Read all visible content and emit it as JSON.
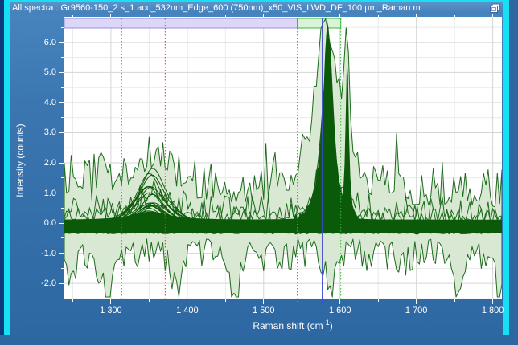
{
  "window": {
    "title": "All spectra : Gr9560-150_2 s_1 acc_532nm_Edge_600 (750nm)_x50_VIS_LWD_DF_100 µm_Raman m",
    "title_icon": "display-pin-icon",
    "colors": {
      "frame_cyan": "#17dff4",
      "titlebar_blue": "#4a86c1",
      "panel_blue": "#2e68a3",
      "desktop_navy": "#0d3a7e",
      "text_white": "#ffffff"
    }
  },
  "chart_data": {
    "type": "line",
    "title": "All spectra",
    "xlabel": "Raman shift (cm⁻¹)",
    "xlabel_parts": {
      "prefix": "Raman shift (cm",
      "sup": "-1",
      "suffix": ")"
    },
    "ylabel": "Intensity (counts)",
    "xlim": [
      1239,
      1812
    ],
    "ylim": [
      -2.53,
      6.85
    ],
    "x_major_ticks": [
      1300,
      1400,
      1500,
      1600,
      1700,
      1800
    ],
    "x_tick_labels": [
      "1 300",
      "1 400",
      "1 500",
      "1 600",
      "1 700",
      "1 800"
    ],
    "x_minor_ticks": [
      1250,
      1350,
      1450,
      1550,
      1650,
      1750
    ],
    "y_major_ticks": [
      6,
      5,
      4,
      3,
      2,
      1,
      0,
      -1,
      -2
    ],
    "y_tick_labels": [
      "6.0",
      "5.0",
      "4.0",
      "3.0",
      "2.0",
      "1.0",
      "0.0",
      "-1.0",
      "-2.0"
    ],
    "y_minor_ticks": [
      6.5,
      5.5,
      4.5,
      3.5,
      2.5,
      1.5,
      0.5,
      -0.5,
      -1.5,
      -2.5
    ],
    "grid": {
      "major_color": "#d5d5d5",
      "minor_color": "#eaeaea"
    },
    "description": "Overlay of ~26 fitted graphene Raman spectra (dark green) with the noisy raw-spectra min/max envelope (pale green): D band near 1352 cm-1, G band near 1584 cm-1.",
    "peaks": {
      "d_band": {
        "center": 1352,
        "hwhm": 22,
        "max_height": 2.1
      },
      "g_band": {
        "center": 1584,
        "hwhm": 8,
        "max_height": 6.62
      },
      "g_side_spike": {
        "center": 1609.5,
        "hwhm": 2.5,
        "height": 5.7
      }
    },
    "envelope": {
      "fill": "#d9e8d2",
      "stroke": "#1c6b1c",
      "base_max": 0.5,
      "noise_amp_max": 1.25,
      "left_extra_noise": 0.55,
      "d_bump": {
        "center": 1352,
        "hwhm": 32,
        "height": 1.25
      },
      "g_bump": {
        "center": 1581,
        "hwhm": 15,
        "height": 5.9
      },
      "spike_bump": {
        "center": 1609,
        "hwhm": 4,
        "height": 4.8
      },
      "cap_max": 6.78,
      "base_min": -0.42,
      "noise_amp_min": 1.05,
      "deep_minima": [
        {
          "x": 1246,
          "depth": 1.3,
          "hwhm": 6
        },
        {
          "x": 1297,
          "depth": 1.8,
          "hwhm": 8
        },
        {
          "x": 1386,
          "depth": 1.4,
          "hwhm": 7
        },
        {
          "x": 1463,
          "depth": 1.95,
          "hwhm": 6
        },
        {
          "x": 1520,
          "depth": 0.7,
          "hwhm": 6
        },
        {
          "x": 1589,
          "depth": 1.1,
          "hwhm": 8
        },
        {
          "x": 1680,
          "depth": 0.6,
          "hwhm": 7
        },
        {
          "x": 1755,
          "depth": 1.85,
          "hwhm": 8
        },
        {
          "x": 1808,
          "depth": 1.45,
          "hwhm": 6
        }
      ],
      "floor_min": -2.45
    },
    "bundle": {
      "color": "#0a5a0a",
      "count": 26,
      "g_heights": [
        6.5,
        5.85,
        5.25,
        4.7,
        4.2,
        3.75,
        3.35,
        3.0,
        2.68,
        2.38,
        2.1,
        1.86,
        1.64,
        1.45,
        1.28,
        1.12,
        0.98,
        0.86,
        0.75,
        0.65,
        0.56,
        0.48,
        0.41,
        0.35,
        0.3,
        0.25
      ],
      "d_to_g_ratio": 0.34,
      "baseline_band": {
        "top": 0.1,
        "bottom": -0.33
      }
    },
    "cursors": [
      {
        "name": "red-cursor-1",
        "x": 1314,
        "color": "#e63232",
        "style": "dotted"
      },
      {
        "name": "red-cursor-2",
        "x": 1371,
        "color": "#e63232",
        "style": "dotted"
      },
      {
        "name": "green-cursor-1",
        "x": 1544,
        "color": "#33bb33",
        "style": "dotted"
      },
      {
        "name": "green-cursor-2",
        "x": 1601,
        "color": "#33bb33",
        "style": "dotted"
      },
      {
        "name": "blue-cursor",
        "x": 1577,
        "color": "#3f49cf",
        "style": "solid"
      }
    ],
    "regions": [
      {
        "name": "lavender-range",
        "from": 1239,
        "to": 1544,
        "fill": "#dcd7f7",
        "border": "#9890e2"
      },
      {
        "name": "green-range",
        "from": 1544,
        "to": 1601,
        "fill": "#d9f3d6",
        "border": "#3cb83c"
      }
    ],
    "noise_seed": 7
  }
}
